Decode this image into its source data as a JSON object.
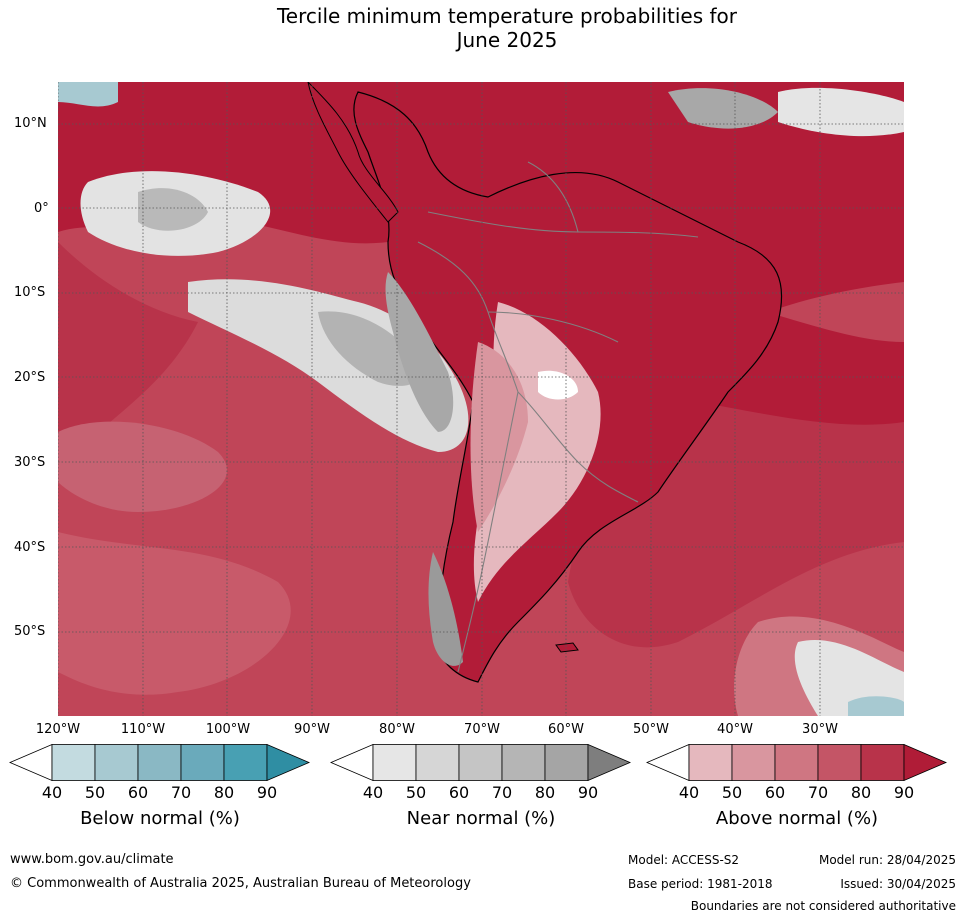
{
  "title_line1": "Tercile minimum temperature probabilities for",
  "title_line2": "June 2025",
  "map": {
    "lat_labels": [
      "10°N",
      "0°",
      "10°S",
      "20°S",
      "30°S",
      "40°S",
      "50°S"
    ],
    "lon_labels": [
      "120°W",
      "110°W",
      "100°W",
      "90°W",
      "80°W",
      "70°W",
      "60°W",
      "50°W",
      "40°W",
      "30°W"
    ],
    "dominant_signal": "Above normal",
    "ocean_color": "#b81e3e",
    "land_outline_color": "#000000",
    "border_color": "#808080"
  },
  "colorbars": [
    {
      "label": "Below normal (%)",
      "ticks": [
        "40",
        "50",
        "60",
        "70",
        "80",
        "90"
      ],
      "colors": [
        "#c3dbe0",
        "#a7c9d1",
        "#8ab8c4",
        "#6aaabb",
        "#48a0b3",
        "#2f8ea3"
      ]
    },
    {
      "label": "Near normal (%)",
      "ticks": [
        "40",
        "50",
        "60",
        "70",
        "80",
        "90"
      ],
      "colors": [
        "#e6e6e6",
        "#d6d6d6",
        "#c5c5c5",
        "#b5b5b5",
        "#a5a5a5",
        "#7e7e7e"
      ]
    },
    {
      "label": "Above normal (%)",
      "ticks": [
        "40",
        "50",
        "60",
        "70",
        "80",
        "90"
      ],
      "colors": [
        "#e5b8be",
        "#d9969f",
        "#cf7682",
        "#c45566",
        "#b8334a",
        "#b01c37"
      ]
    }
  ],
  "footer": {
    "website": "www.bom.gov.au/climate",
    "copyright": "© Commonwealth of Australia 2025, Australian Bureau of Meteorology",
    "model": "Model: ACCESS-S2",
    "base_period": "Base period: 1981-2018",
    "model_run": "Model run: 28/04/2025",
    "issued": "Issued: 30/04/2025",
    "disclaimer": "Boundaries are not considered authoritative"
  }
}
